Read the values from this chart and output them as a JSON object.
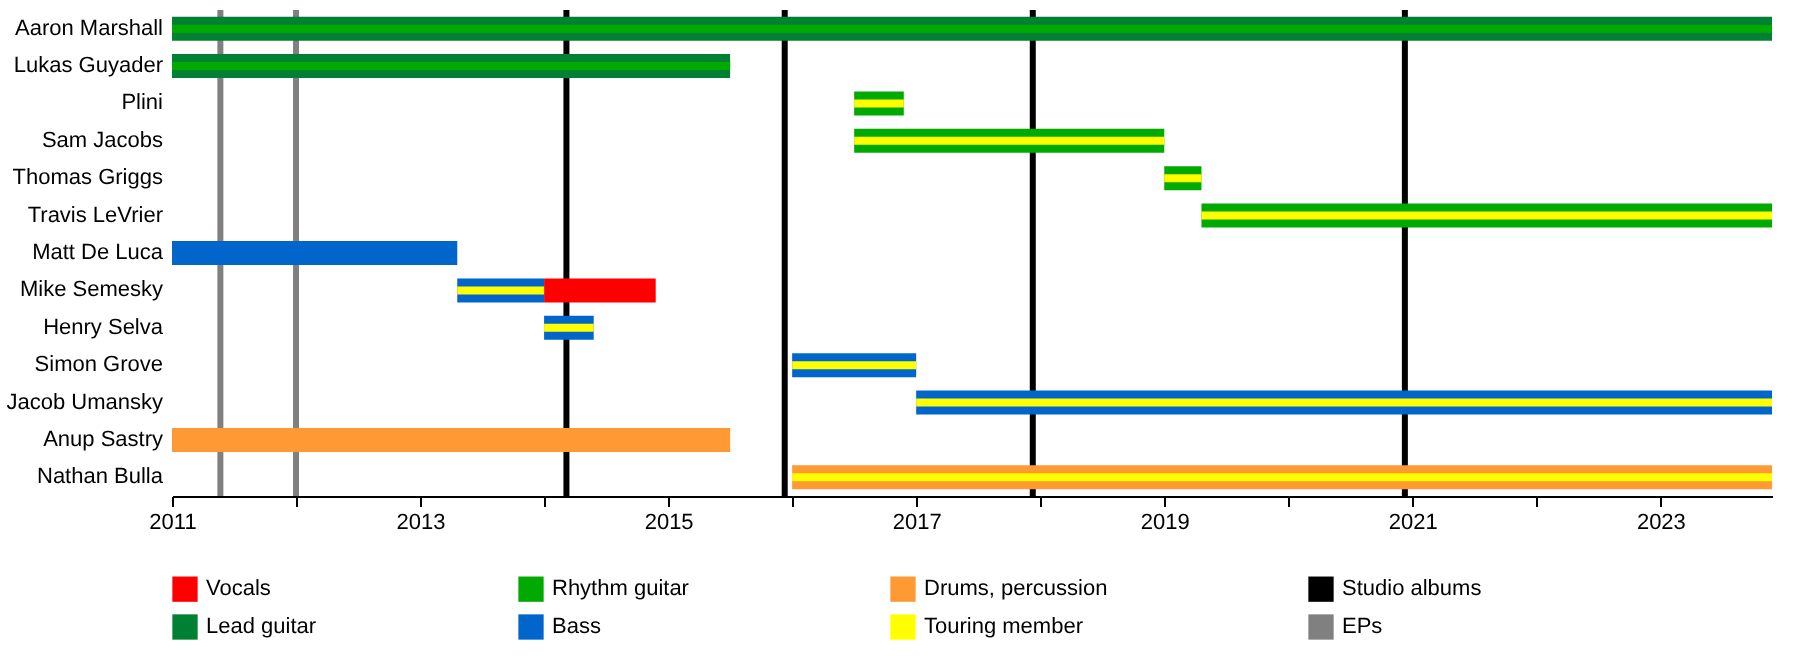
{
  "chart_data": {
    "type": "bar",
    "orientation": "horizontal",
    "legend": "bottom",
    "categories": [
      "Aaron Marshall",
      "Lukas Guyader",
      "Plini",
      "Sam Jacobs",
      "Thomas Griggs",
      "Travis LeVrier",
      "Matt De Luca",
      "Mike Semesky",
      "Henry Selva",
      "Simon Grove",
      "Jacob Umansky",
      "Anup Sastry",
      "Nathan Bulla"
    ],
    "series": [
      {
        "name": "Vocals",
        "color": "#ff0000",
        "values": [
          null,
          null,
          null,
          null,
          null,
          null,
          null,
          0.9,
          null,
          null,
          null,
          null,
          null
        ],
        "base": [
          null,
          null,
          null,
          null,
          null,
          null,
          null,
          2014.0,
          null,
          null,
          null,
          null,
          null
        ]
      },
      {
        "name": "Lead guitar",
        "color": "#008033",
        "values": [
          12.9,
          4.5,
          null,
          null,
          null,
          null,
          null,
          null,
          null,
          null,
          null,
          null,
          null
        ],
        "base": [
          2011,
          2011,
          null,
          null,
          null,
          null,
          null,
          null,
          null,
          null,
          null,
          null,
          null
        ]
      },
      {
        "name": "Rhythm guitar",
        "color": "#00aa00",
        "values": [
          12.9,
          4.5,
          0.4,
          2.5,
          0.3,
          4.6,
          null,
          null,
          null,
          null,
          null,
          null,
          null
        ],
        "base": [
          2011,
          2011,
          2016.5,
          2016.5,
          2019.0,
          2019.3,
          null,
          null,
          null,
          null,
          null,
          null,
          null
        ]
      },
      {
        "name": "Bass",
        "color": "#0066cc",
        "values": [
          null,
          null,
          null,
          null,
          null,
          null,
          2.3,
          0.7,
          0.4,
          1.0,
          6.9,
          null,
          null
        ],
        "base": [
          null,
          null,
          null,
          null,
          null,
          null,
          2011,
          2013.3,
          2014.0,
          2016.0,
          2017.0,
          null,
          null
        ]
      },
      {
        "name": "Drums, percussion",
        "color": "#ff9933",
        "values": [
          null,
          null,
          null,
          null,
          null,
          null,
          null,
          null,
          null,
          null,
          null,
          4.5,
          7.9
        ],
        "base": [
          null,
          null,
          null,
          null,
          null,
          null,
          null,
          null,
          null,
          null,
          null,
          2011,
          2016.0
        ]
      },
      {
        "name": "Touring member",
        "color": "#ffff00",
        "values": [
          null,
          null,
          0.4,
          2.5,
          0.3,
          4.6,
          null,
          0.7,
          0.4,
          1.0,
          6.9,
          null,
          7.9
        ],
        "base": [
          null,
          null,
          2016.5,
          2016.5,
          2019.0,
          2019.3,
          null,
          2013.3,
          2014.0,
          2016.0,
          2017.0,
          null,
          2016.0
        ]
      }
    ],
    "xlim": [
      2011,
      2023.9
    ],
    "xticks": [
      2011,
      {
        "value": 2012,
        "label": null
      },
      2013,
      {
        "value": 2014,
        "label": null
      },
      2015,
      {
        "value": 2016,
        "label": null
      },
      2017,
      {
        "value": 2018,
        "label": null
      },
      2019,
      {
        "value": 2020,
        "label": null
      },
      2021,
      {
        "value": 2022,
        "label": null
      },
      2023
    ],
    "ref_lines": [
      {
        "axis": "x",
        "value": 2014.18,
        "label": "Studio albums",
        "color": "#000000"
      },
      {
        "axis": "x",
        "value": 2015.94,
        "label": null,
        "color": "#000000"
      },
      {
        "axis": "x",
        "value": 2017.94,
        "label": null,
        "color": "#000000"
      },
      {
        "axis": "x",
        "value": 2020.94,
        "label": null,
        "color": "#000000"
      },
      {
        "axis": "x",
        "value": 2011.39,
        "label": "EPs",
        "color": "#808080"
      },
      {
        "axis": "x",
        "value": 2012.0,
        "label": null,
        "color": "#808080"
      }
    ]
  }
}
